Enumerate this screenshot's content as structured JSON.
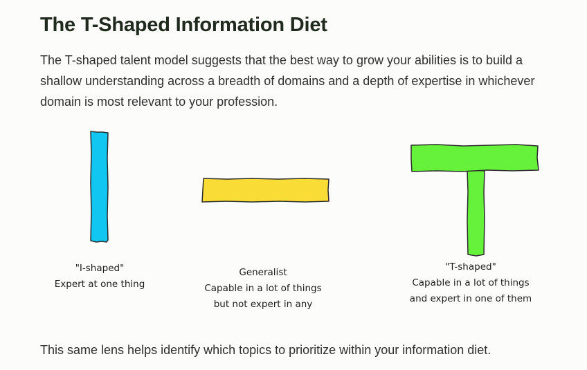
{
  "article": {
    "title": "The T-Shaped Information Diet",
    "intro": "The T-shaped talent model suggests that the best way to grow your abilities is to build a shallow understanding across a breadth of domains and a depth of expertise in whichever domain is most relevant to your profession.",
    "outro": "This same lens helps identify which topics to prioritize within your information diet."
  },
  "diagram": {
    "colors": {
      "i_shape": "#12c6f2",
      "generalist": "#f9dc35",
      "t_shape": "#66f23b",
      "stroke": "#2b2b2b"
    },
    "captions": {
      "i_shaped": {
        "title": "\"I-shaped\"",
        "line1": "Expert at one thing"
      },
      "generalist": {
        "title": "Generalist",
        "line1": "Capable in a lot of things",
        "line2": "but not expert in any"
      },
      "t_shaped": {
        "title": "\"T-shaped\"",
        "line1": "Capable in a lot of things",
        "line2": "and expert in one of them"
      }
    }
  }
}
